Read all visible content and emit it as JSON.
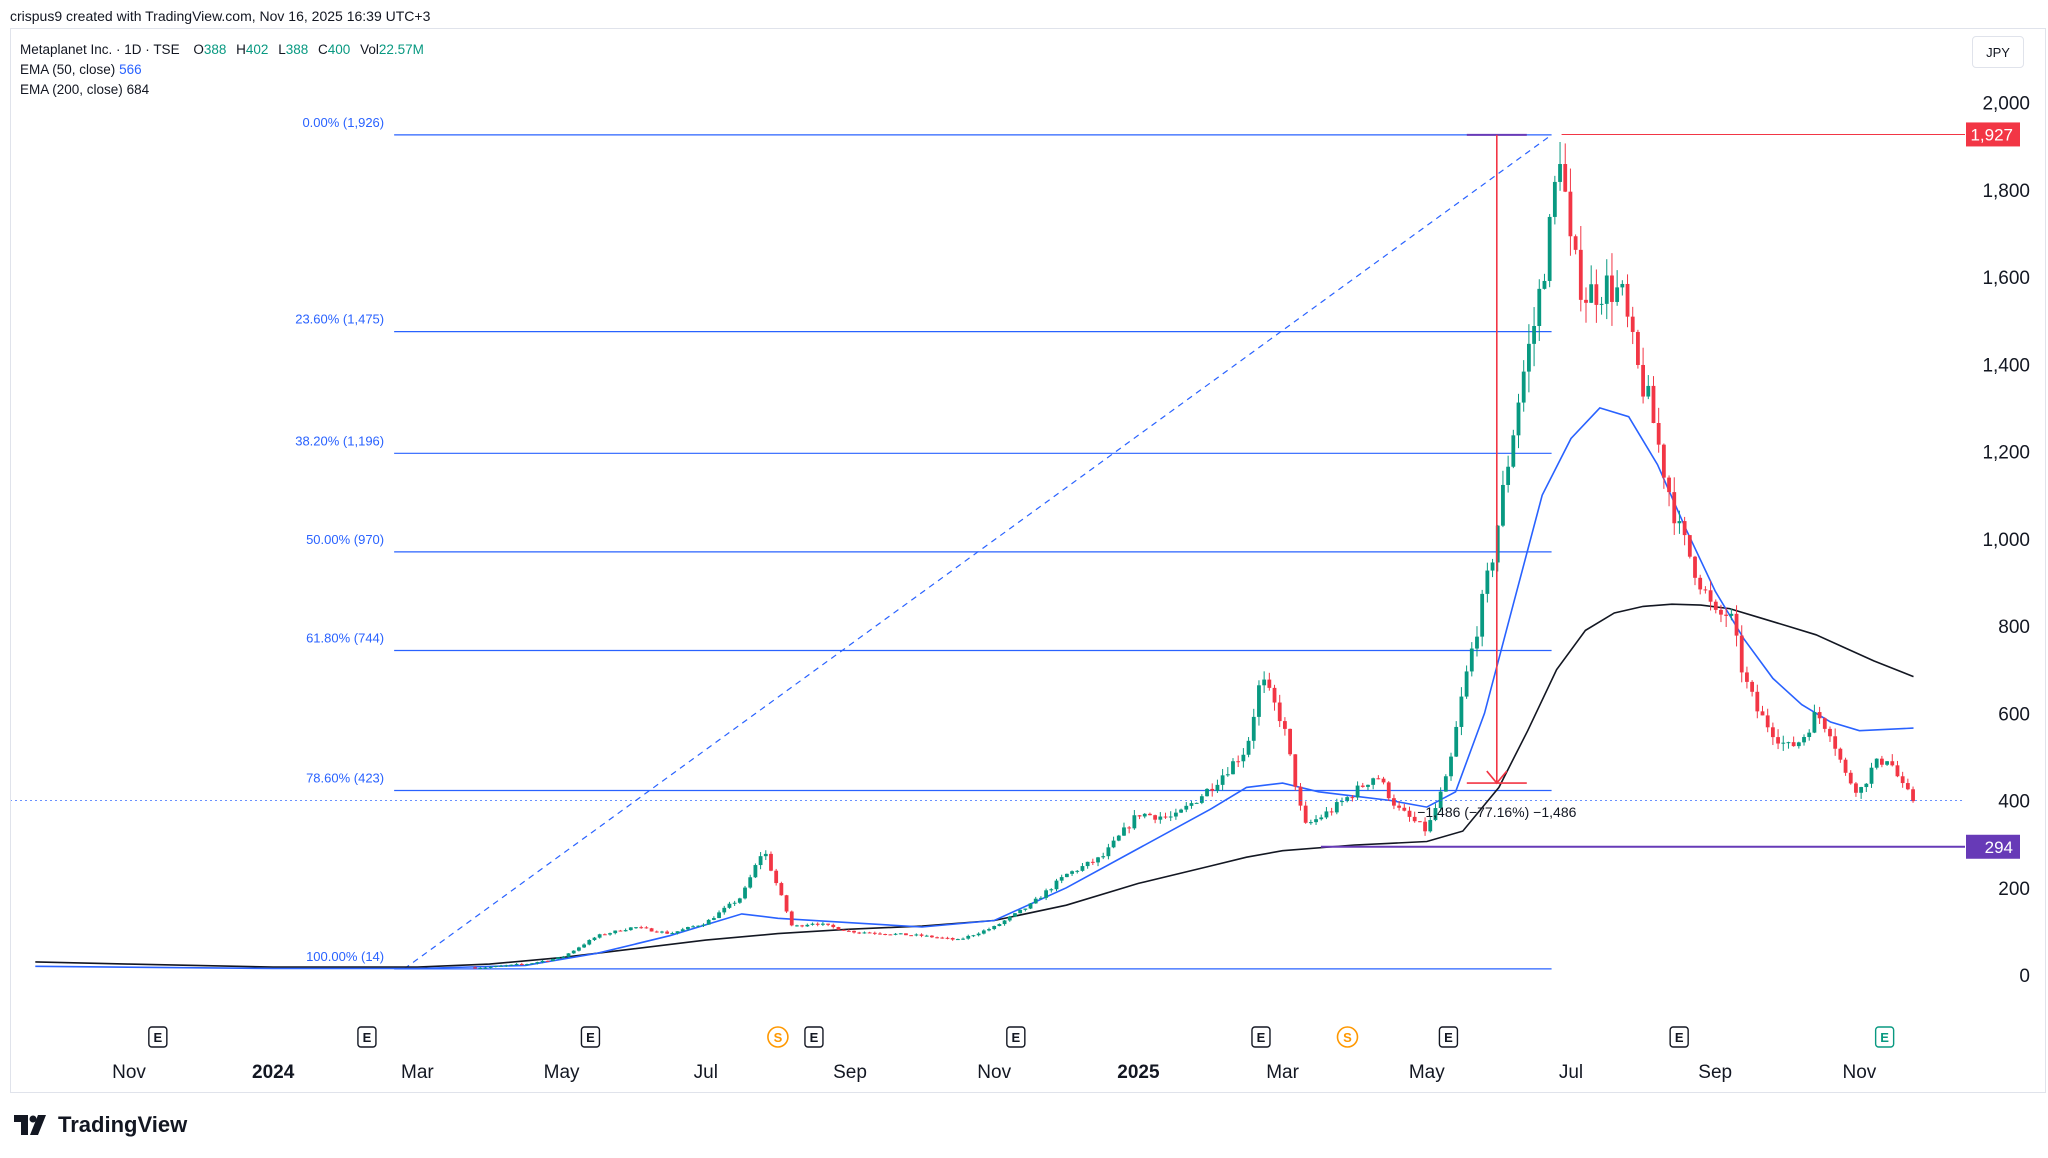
{
  "header": {
    "credit": "crispus9 created with TradingView.com, Nov 16, 2025 16:39 UTC+3"
  },
  "legend": {
    "symbol": "Metaplanet Inc. · 1D · TSE",
    "open_label": "O",
    "open": "388",
    "high_label": "H",
    "high": "402",
    "low_label": "L",
    "low": "388",
    "close_label": "C",
    "close": "400",
    "vol_label": "Vol",
    "vol": "22.57M",
    "ema50_label": "EMA (50, close)",
    "ema50_value": "566",
    "ema200_label": "EMA (200, close)",
    "ema200_value": "684"
  },
  "currency": "JPY",
  "brand": "TradingView",
  "colors": {
    "up": "#089981",
    "down": "#f23645",
    "ema50": "#2962ff",
    "ema200": "#131722",
    "fib": "#2962ff",
    "measure": "#f23645",
    "support": "#673ab7"
  },
  "chart_data": {
    "type": "candlestick",
    "y_axis": {
      "ticks": [
        "0",
        "200",
        "400",
        "600",
        "800",
        "1,000",
        "1,200",
        "1,400",
        "1,600",
        "1,800",
        "2,000"
      ],
      "ylim": [
        -50,
        2070
      ]
    },
    "x_axis": {
      "labels": [
        {
          "text": "Nov",
          "t": 0,
          "bold": false
        },
        {
          "text": "2024",
          "t": 2,
          "bold": true
        },
        {
          "text": "Mar",
          "t": 4,
          "bold": false
        },
        {
          "text": "May",
          "t": 6,
          "bold": false
        },
        {
          "text": "Jul",
          "t": 8,
          "bold": false
        },
        {
          "text": "Sep",
          "t": 10,
          "bold": false
        },
        {
          "text": "Nov",
          "t": 12,
          "bold": false
        },
        {
          "text": "2025",
          "t": 14,
          "bold": true
        },
        {
          "text": "Mar",
          "t": 16,
          "bold": false
        },
        {
          "text": "May",
          "t": 18,
          "bold": false
        },
        {
          "text": "Jul",
          "t": 20,
          "bold": false
        },
        {
          "text": "Sep",
          "t": 22,
          "bold": false
        },
        {
          "text": "Nov",
          "t": 24,
          "bold": false
        }
      ]
    },
    "events": [
      {
        "t": 0.4,
        "type": "E"
      },
      {
        "t": 3.3,
        "type": "E"
      },
      {
        "t": 6.4,
        "type": "E"
      },
      {
        "t": 9.0,
        "type": "S"
      },
      {
        "t": 9.5,
        "type": "E"
      },
      {
        "t": 12.3,
        "type": "E"
      },
      {
        "t": 15.7,
        "type": "E"
      },
      {
        "t": 16.9,
        "type": "S"
      },
      {
        "t": 18.3,
        "type": "E"
      },
      {
        "t": 21.5,
        "type": "E"
      },
      {
        "t": 24.35,
        "type": "E",
        "upcoming": true
      }
    ],
    "fibonacci": {
      "from": {
        "t": 3.4,
        "price": 14
      },
      "to": {
        "t": 19.8,
        "price": 1926
      },
      "levels": [
        {
          "label": "0.00% (1,926)",
          "price": 1926
        },
        {
          "label": "23.60% (1,475)",
          "price": 1475
        },
        {
          "label": "38.20% (1,196)",
          "price": 1196
        },
        {
          "label": "50.00% (970)",
          "price": 970
        },
        {
          "label": "61.80% (744)",
          "price": 744
        },
        {
          "label": "78.60% (423)",
          "price": 423
        },
        {
          "label": "100.00% (14)",
          "price": 14
        }
      ]
    },
    "measure": {
      "t": 18.0,
      "from_price": 1926,
      "to_price": 440,
      "label": "−1,486 (−77.16%) −1,486"
    },
    "price_tags": [
      {
        "price": 1927,
        "text": "1,927",
        "color": "#f23645"
      },
      {
        "price": 294,
        "text": "294",
        "color": "#673ab7"
      }
    ],
    "support_line": {
      "price": 294,
      "from_t": 15.7
    },
    "last_price": 400,
    "price_path": [
      [
        -1.3,
        20
      ],
      [
        0,
        18
      ],
      [
        1,
        16
      ],
      [
        2,
        15
      ],
      [
        3,
        15
      ],
      [
        4,
        15
      ],
      [
        5,
        18
      ],
      [
        5.5,
        25
      ],
      [
        6,
        40
      ],
      [
        6.5,
        90
      ],
      [
        7,
        110
      ],
      [
        7.5,
        95
      ],
      [
        8,
        120
      ],
      [
        8.5,
        180
      ],
      [
        8.8,
        290
      ],
      [
        9.0,
        200
      ],
      [
        9.2,
        110
      ],
      [
        9.5,
        120
      ],
      [
        10,
        100
      ],
      [
        11,
        90
      ],
      [
        11.5,
        80
      ],
      [
        12,
        110
      ],
      [
        12.5,
        160
      ],
      [
        13,
        230
      ],
      [
        13.5,
        270
      ],
      [
        14,
        370
      ],
      [
        14.5,
        360
      ],
      [
        15,
        430
      ],
      [
        15.5,
        520
      ],
      [
        15.7,
        680
      ],
      [
        16,
        580
      ],
      [
        16.3,
        340
      ],
      [
        16.7,
        380
      ],
      [
        17,
        420
      ],
      [
        17.3,
        460
      ],
      [
        17.6,
        380
      ],
      [
        18,
        330
      ],
      [
        18.3,
        460
      ],
      [
        18.5,
        650
      ],
      [
        18.7,
        800
      ],
      [
        18.9,
        950
      ],
      [
        19.1,
        1150
      ],
      [
        19.3,
        1350
      ],
      [
        19.5,
        1500
      ],
      [
        19.7,
        1700
      ],
      [
        19.85,
        1900
      ],
      [
        20,
        1650
      ],
      [
        20.2,
        1560
      ],
      [
        20.5,
        1580
      ],
      [
        20.7,
        1560
      ],
      [
        20.9,
        1400
      ],
      [
        21.1,
        1300
      ],
      [
        21.3,
        1150
      ],
      [
        21.5,
        1020
      ],
      [
        21.8,
        900
      ],
      [
        22,
        820
      ],
      [
        22.2,
        830
      ],
      [
        22.4,
        680
      ],
      [
        22.6,
        600
      ],
      [
        22.8,
        560
      ],
      [
        23,
        520
      ],
      [
        23.2,
        540
      ],
      [
        23.4,
        600
      ],
      [
        23.6,
        560
      ],
      [
        23.8,
        460
      ],
      [
        24,
        420
      ],
      [
        24.2,
        480
      ],
      [
        24.4,
        500
      ],
      [
        24.6,
        430
      ],
      [
        24.75,
        400
      ]
    ],
    "ema50_path": [
      [
        -1.3,
        20
      ],
      [
        2,
        15
      ],
      [
        4,
        15
      ],
      [
        5.5,
        22
      ],
      [
        6.5,
        50
      ],
      [
        7.5,
        90
      ],
      [
        8.5,
        140
      ],
      [
        9,
        130
      ],
      [
        10,
        120
      ],
      [
        11,
        110
      ],
      [
        12,
        125
      ],
      [
        13,
        200
      ],
      [
        14,
        290
      ],
      [
        15,
        380
      ],
      [
        15.5,
        430
      ],
      [
        16,
        440
      ],
      [
        16.5,
        420
      ],
      [
        17,
        410
      ],
      [
        17.5,
        400
      ],
      [
        18,
        385
      ],
      [
        18.4,
        420
      ],
      [
        18.8,
        600
      ],
      [
        19.2,
        850
      ],
      [
        19.6,
        1100
      ],
      [
        20,
        1230
      ],
      [
        20.4,
        1300
      ],
      [
        20.8,
        1280
      ],
      [
        21.2,
        1170
      ],
      [
        21.6,
        1020
      ],
      [
        22,
        880
      ],
      [
        22.4,
        770
      ],
      [
        22.8,
        680
      ],
      [
        23.2,
        620
      ],
      [
        23.6,
        580
      ],
      [
        24,
        560
      ],
      [
        24.75,
        566
      ]
    ],
    "ema200_path": [
      [
        -1.3,
        30
      ],
      [
        0,
        25
      ],
      [
        2,
        18
      ],
      [
        4,
        18
      ],
      [
        5,
        25
      ],
      [
        6,
        40
      ],
      [
        7,
        60
      ],
      [
        8,
        80
      ],
      [
        9,
        95
      ],
      [
        10,
        105
      ],
      [
        11,
        112
      ],
      [
        12,
        125
      ],
      [
        13,
        160
      ],
      [
        14,
        210
      ],
      [
        15,
        250
      ],
      [
        15.5,
        270
      ],
      [
        16,
        285
      ],
      [
        17,
        298
      ],
      [
        17.5,
        302
      ],
      [
        18,
        306
      ],
      [
        18.5,
        330
      ],
      [
        19,
        430
      ],
      [
        19.4,
        560
      ],
      [
        19.8,
        700
      ],
      [
        20.2,
        790
      ],
      [
        20.6,
        830
      ],
      [
        21,
        845
      ],
      [
        21.4,
        850
      ],
      [
        21.8,
        848
      ],
      [
        22.2,
        840
      ],
      [
        22.6,
        820
      ],
      [
        23,
        800
      ],
      [
        23.4,
        780
      ],
      [
        23.8,
        750
      ],
      [
        24.2,
        720
      ],
      [
        24.75,
        684
      ]
    ]
  }
}
